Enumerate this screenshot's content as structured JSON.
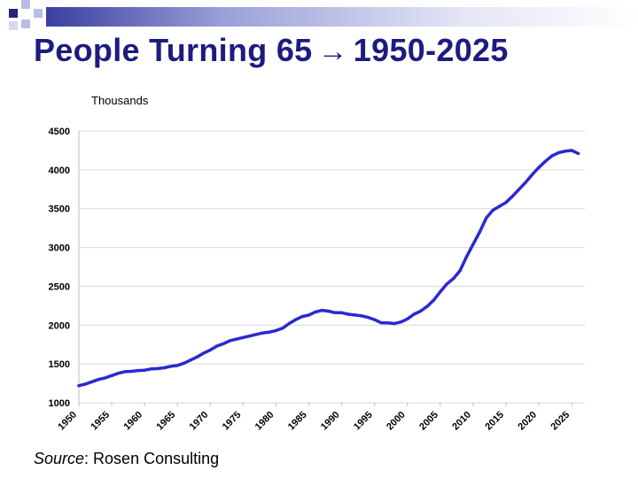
{
  "title": {
    "text_before": "People Turning 65",
    "arrow": "→",
    "text_after": "1950-2025"
  },
  "source": {
    "label": "Source",
    "text": ": Rosen Consulting"
  },
  "colors": {
    "title": "#1c1c80",
    "line": "#2a2ad0",
    "grid": "#d9d9d9"
  },
  "chart_data": {
    "type": "line",
    "title": "People Turning 65 1950-2025",
    "ylabel": "Thousands",
    "xlabel": "",
    "xlim": [
      1950,
      2027
    ],
    "ylim": [
      1000,
      4500
    ],
    "yticks": [
      1000,
      1500,
      2000,
      2500,
      3000,
      3500,
      4000,
      4500
    ],
    "xticks": [
      1950,
      1955,
      1960,
      1965,
      1970,
      1975,
      1980,
      1985,
      1990,
      1995,
      2000,
      2005,
      2010,
      2015,
      2020,
      2025
    ],
    "grid": true,
    "series": [
      {
        "name": "People Turning 65",
        "x": [
          1950,
          1951,
          1952,
          1953,
          1954,
          1955,
          1956,
          1957,
          1958,
          1959,
          1960,
          1961,
          1962,
          1963,
          1964,
          1965,
          1966,
          1967,
          1968,
          1969,
          1970,
          1971,
          1972,
          1973,
          1974,
          1975,
          1976,
          1977,
          1978,
          1979,
          1980,
          1981,
          1982,
          1983,
          1984,
          1985,
          1986,
          1987,
          1988,
          1989,
          1990,
          1991,
          1992,
          1993,
          1994,
          1995,
          1996,
          1997,
          1998,
          1999,
          2000,
          2001,
          2002,
          2003,
          2004,
          2005,
          2006,
          2007,
          2008,
          2009,
          2010,
          2011,
          2012,
          2013,
          2014,
          2015,
          2016,
          2017,
          2018,
          2019,
          2020,
          2021,
          2022,
          2023,
          2024,
          2025,
          2026
        ],
        "values": [
          1220,
          1240,
          1270,
          1300,
          1320,
          1350,
          1380,
          1400,
          1405,
          1415,
          1420,
          1435,
          1440,
          1450,
          1470,
          1480,
          1510,
          1550,
          1590,
          1640,
          1680,
          1730,
          1760,
          1800,
          1820,
          1840,
          1860,
          1880,
          1900,
          1910,
          1930,
          1960,
          2020,
          2070,
          2110,
          2130,
          2170,
          2190,
          2180,
          2160,
          2160,
          2140,
          2130,
          2120,
          2100,
          2070,
          2030,
          2030,
          2020,
          2040,
          2080,
          2140,
          2180,
          2240,
          2320,
          2430,
          2530,
          2600,
          2700,
          2880,
          3040,
          3200,
          3380,
          3480,
          3530,
          3580,
          3660,
          3750,
          3840,
          3940,
          4030,
          4110,
          4180,
          4220,
          4240,
          4250,
          4210
        ]
      }
    ]
  }
}
